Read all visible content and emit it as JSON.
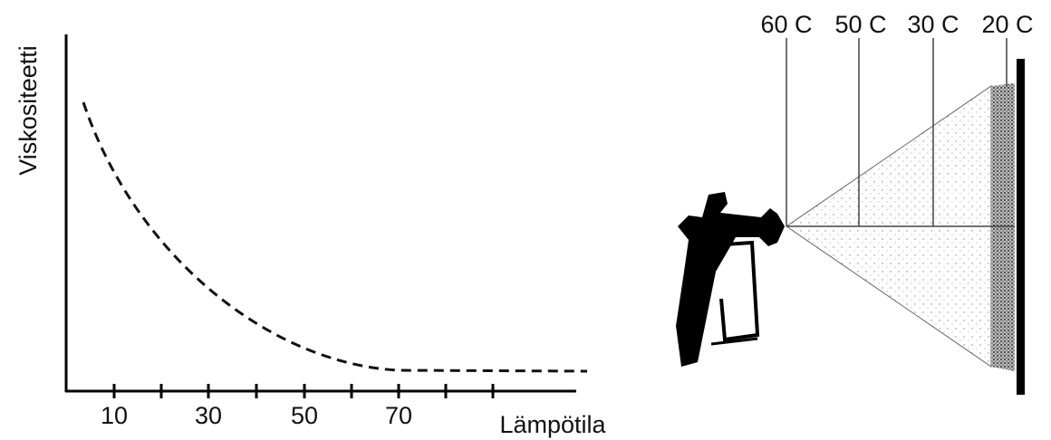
{
  "viscosity_chart": {
    "y_label": "Viskositeetti",
    "x_label": "Lämpötila",
    "x_ticks": [
      10,
      30,
      50,
      70
    ]
  },
  "spray_labels": [
    "60 C",
    "50 C",
    "30 C",
    "20 C"
  ]
}
